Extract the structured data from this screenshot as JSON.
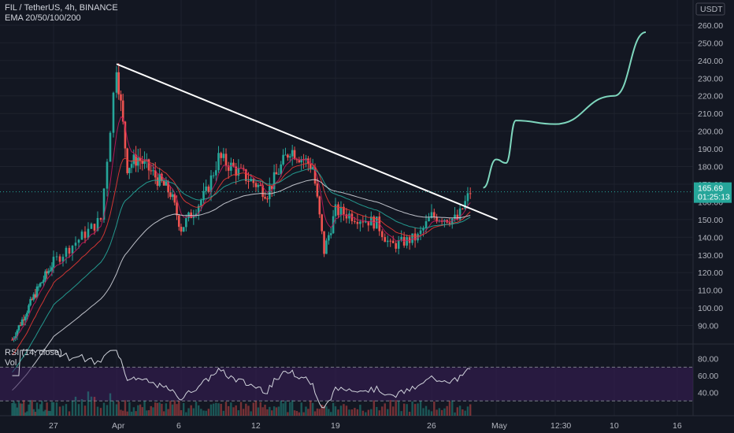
{
  "header": {
    "symbol_line": "FIL / TetherUS, 4h, BINANCE",
    "indicator_line": "EMA 20/50/100/200",
    "currency": "USDT"
  },
  "rsi_panel": {
    "label": "RSI (14, close)",
    "vol_label": "Vol",
    "ticks": [
      "80.00",
      "60.00",
      "40.00"
    ],
    "upper_band": 70,
    "lower_band": 30
  },
  "price_axis": {
    "ticks": [
      "260.00",
      "250.00",
      "240.00",
      "230.00",
      "220.00",
      "210.00",
      "200.00",
      "190.00",
      "180.00",
      "170.00",
      "160.00",
      "150.00",
      "140.00",
      "130.00",
      "120.00",
      "110.00",
      "100.00",
      "90.00"
    ]
  },
  "time_axis": {
    "ticks": [
      "27",
      "Apr",
      "6",
      "12",
      "19",
      "26",
      "May",
      "12:30",
      "10",
      "16"
    ]
  },
  "last_price": {
    "value": "165.69",
    "countdown": "01:25:13"
  },
  "colors": {
    "background": "#131722",
    "up": "#26a69a",
    "down": "#ef5350",
    "projection": "#7ed6bd",
    "ema20": "#c2185b",
    "ema50": "#e53935",
    "ema100": "#26a69a",
    "ema200": "#d1d4dc",
    "trendline": "#ffffff",
    "rsi_line": "#d1d4dc",
    "rsi_fill": "#3a1d5a"
  },
  "chart_data": {
    "type": "candlestick",
    "title": "FIL / TetherUS, 4h, BINANCE",
    "ylabel": "USDT",
    "ylim": [
      80,
      268
    ],
    "price_key_points": [
      {
        "x": "Mar 22",
        "y": 82
      },
      {
        "x": "Mar 25",
        "y": 110
      },
      {
        "x": "Mar 27",
        "y": 126
      },
      {
        "x": "Mar 30",
        "y": 150
      },
      {
        "x": "Apr 1",
        "y": 238
      },
      {
        "x": "Apr 2",
        "y": 180
      },
      {
        "x": "Apr 3",
        "y": 185
      },
      {
        "x": "Apr 6",
        "y": 165
      },
      {
        "x": "Apr 7",
        "y": 145
      },
      {
        "x": "Apr 9",
        "y": 165
      },
      {
        "x": "Apr 10",
        "y": 185
      },
      {
        "x": "Apr 12",
        "y": 175
      },
      {
        "x": "Apr 14",
        "y": 165
      },
      {
        "x": "Apr 16",
        "y": 190
      },
      {
        "x": "Apr 18",
        "y": 180
      },
      {
        "x": "Apr 19",
        "y": 132
      },
      {
        "x": "Apr 20",
        "y": 155
      },
      {
        "x": "Apr 23",
        "y": 148
      },
      {
        "x": "Apr 24",
        "y": 135
      },
      {
        "x": "Apr 26",
        "y": 140
      },
      {
        "x": "Apr 27",
        "y": 152
      },
      {
        "x": "Apr 29",
        "y": 150
      },
      {
        "x": "Apr 30",
        "y": 165.69
      }
    ],
    "trendline": {
      "from": {
        "x": "Apr 1",
        "y": 238
      },
      "to": {
        "x": "May 1",
        "y": 150
      }
    },
    "projection_path": [
      {
        "x": "May 1",
        "y": 168
      },
      {
        "x": "May 2",
        "y": 184
      },
      {
        "x": "May 3",
        "y": 182
      },
      {
        "x": "May 4",
        "y": 206
      },
      {
        "x": "May 8",
        "y": 204
      },
      {
        "x": "May 11",
        "y": 220
      },
      {
        "x": "May 13",
        "y": 256
      }
    ],
    "ema_series": [
      {
        "name": "EMA 20",
        "end_value": 152
      },
      {
        "name": "EMA 50",
        "end_value": 150
      },
      {
        "name": "EMA 100",
        "end_value": 149
      },
      {
        "name": "EMA 200",
        "end_value": 145
      }
    ],
    "rsi": {
      "range": [
        0,
        100
      ],
      "bands": [
        30,
        70
      ],
      "last_value": 72
    }
  }
}
